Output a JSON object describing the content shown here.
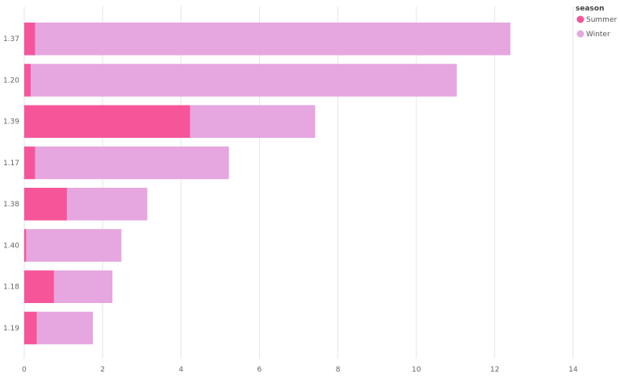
{
  "chart_data": {
    "type": "bar",
    "orientation": "horizontal",
    "stacked": true,
    "categories": [
      "1.37",
      "1.20",
      "1.39",
      "1.17",
      "1.38",
      "1.40",
      "1.18",
      "1.19"
    ],
    "series": [
      {
        "name": "Summer",
        "color": "#F7559A",
        "values": [
          0.28,
          0.17,
          4.23,
          0.28,
          1.09,
          0.05,
          0.76,
          0.32
        ]
      },
      {
        "name": "Winter",
        "color": "#E6A6DF",
        "values": [
          12.12,
          10.86,
          3.19,
          4.94,
          2.05,
          2.43,
          1.49,
          1.43
        ]
      }
    ],
    "x_ticks": [
      0,
      2,
      4,
      6,
      8,
      10,
      12,
      14
    ],
    "xlim": [
      0,
      14
    ],
    "grid": true,
    "legend": {
      "title": "season",
      "position": "top-right"
    },
    "title": "",
    "xlabel": "",
    "ylabel": ""
  }
}
